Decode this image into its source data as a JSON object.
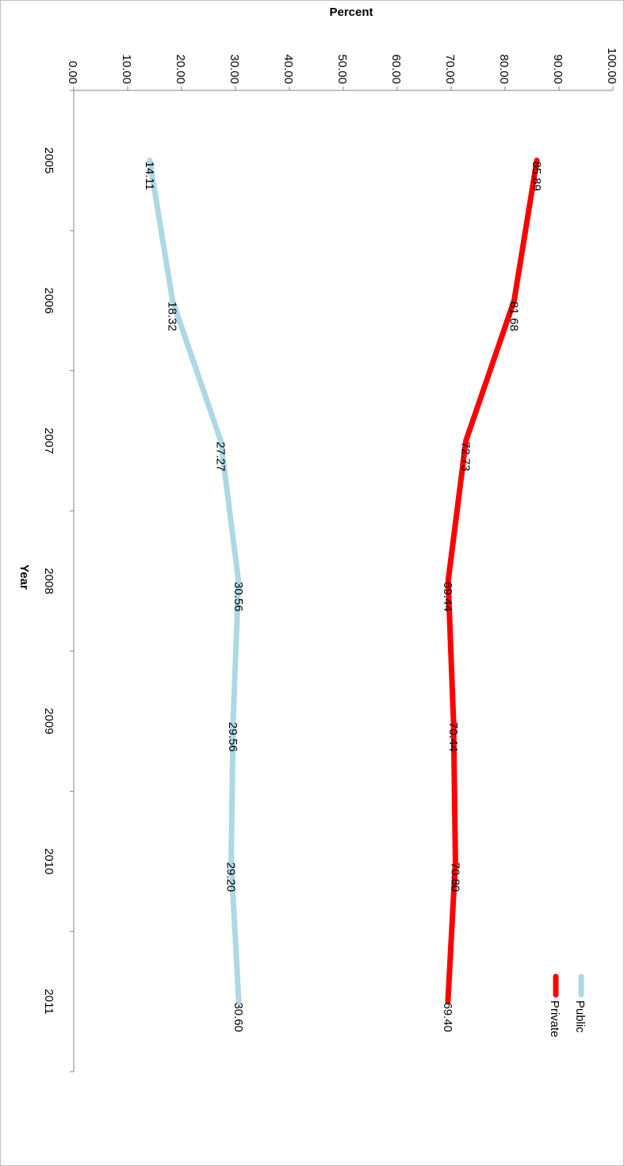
{
  "chart_data": {
    "type": "line",
    "orientation": "rotated-90-clockwise",
    "xlabel": "Year",
    "ylabel": "Percent",
    "x": [
      "2005",
      "2006",
      "2007",
      "2008",
      "2009",
      "2010",
      "2011"
    ],
    "ylim": [
      0,
      100
    ],
    "y_ticks": [
      "0.00",
      "10.00",
      "20.00",
      "30.00",
      "40.00",
      "50.00",
      "60.00",
      "70.00",
      "80.00",
      "90.00",
      "100.00"
    ],
    "grid": false,
    "legend_position": "bottom-right",
    "series": [
      {
        "name": "Public",
        "color": "#add8e6",
        "values": [
          14.11,
          18.32,
          27.27,
          30.56,
          29.56,
          29.2,
          30.6
        ],
        "labels": [
          "14.11",
          "18.32",
          "27.27",
          "30.56",
          "29.56",
          "29.20",
          "30.60"
        ]
      },
      {
        "name": "Private",
        "color": "#ff0000",
        "values": [
          85.89,
          81.68,
          72.73,
          69.44,
          70.44,
          70.8,
          69.4
        ],
        "labels": [
          "85.89",
          "81.68",
          "72.73",
          "69.44",
          "70.44",
          "70.80",
          "69.40"
        ]
      }
    ]
  }
}
